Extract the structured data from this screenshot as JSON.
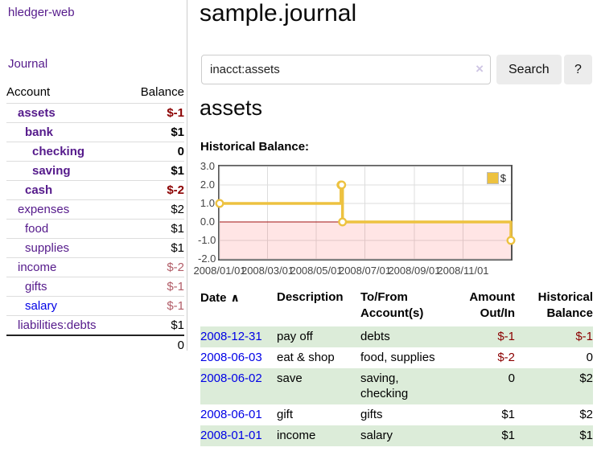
{
  "colors": {
    "link_visited_purple": "#551a8b",
    "link_new_blue": "#0000e6",
    "negative_red": "#8b0000",
    "negative_muted_rose": "#b25d68",
    "stripe_green": "#dcecd9",
    "button_gray": "#ececec",
    "divider_gray": "#cccccc"
  },
  "sidebar": {
    "brand": "hledger-web",
    "journal_link": "Journal",
    "table": {
      "account_header": "Account",
      "balance_header": "Balance",
      "rows": [
        {
          "name": "assets",
          "balance": "$-1",
          "level": 1,
          "in_acct": true,
          "balance_tone": "negative",
          "link_tone": "visited"
        },
        {
          "name": "bank",
          "balance": "$1",
          "level": 2,
          "in_acct": true,
          "balance_tone": "normal",
          "link_tone": "visited"
        },
        {
          "name": "checking",
          "balance": "0",
          "level": 3,
          "in_acct": true,
          "balance_tone": "normal",
          "link_tone": "visited"
        },
        {
          "name": "saving",
          "balance": "$1",
          "level": 3,
          "in_acct": true,
          "balance_tone": "normal",
          "link_tone": "visited"
        },
        {
          "name": "cash",
          "balance": "$-2",
          "level": 2,
          "in_acct": true,
          "balance_tone": "negative",
          "link_tone": "visited"
        },
        {
          "name": "expenses",
          "balance": "$2",
          "level": 1,
          "in_acct": false,
          "balance_tone": "normal",
          "link_tone": "visited"
        },
        {
          "name": "food",
          "balance": "$1",
          "level": 2,
          "in_acct": false,
          "balance_tone": "normal",
          "link_tone": "visited"
        },
        {
          "name": "supplies",
          "balance": "$1",
          "level": 2,
          "in_acct": false,
          "balance_tone": "normal",
          "link_tone": "visited"
        },
        {
          "name": "income",
          "balance": "$-2",
          "level": 1,
          "in_acct": false,
          "balance_tone": "negative-muted",
          "link_tone": "visited"
        },
        {
          "name": "gifts",
          "balance": "$-1",
          "level": 2,
          "in_acct": false,
          "balance_tone": "negative-muted",
          "link_tone": "visited"
        },
        {
          "name": "salary",
          "balance": "$-1",
          "level": 2,
          "in_acct": false,
          "balance_tone": "negative-muted",
          "link_tone": "new"
        },
        {
          "name": "liabilities:debts",
          "balance": "$1",
          "level": 1,
          "in_acct": false,
          "balance_tone": "normal",
          "link_tone": "visited"
        }
      ],
      "total": "0"
    }
  },
  "main": {
    "title": "sample.journal",
    "search": {
      "value": "inacct:assets",
      "clear_icon": "×",
      "search_button": "Search",
      "help_button": "?"
    },
    "account_heading": "assets",
    "section_label": "Historical Balance:"
  },
  "chart_data": {
    "type": "line",
    "step": true,
    "title": "Historical Balance:",
    "xlim": [
      "2008-01-01",
      "2008-12-31"
    ],
    "ylim": [
      -2,
      3
    ],
    "yticks": [
      {
        "v": 3,
        "label": "3.0"
      },
      {
        "v": 2,
        "label": "2.0"
      },
      {
        "v": 1,
        "label": "1.0"
      },
      {
        "v": 0,
        "label": "0.0"
      },
      {
        "v": -1,
        "label": "-1.0"
      },
      {
        "v": -2,
        "label": "-2.0"
      }
    ],
    "xticks": [
      {
        "t": "2008-01-01",
        "label": "2008/01/01"
      },
      {
        "t": "2008-03-01",
        "label": "2008/03/01"
      },
      {
        "t": "2008-05-01",
        "label": "2008/05/01"
      },
      {
        "t": "2008-07-01",
        "label": "2008/07/01"
      },
      {
        "t": "2008-09-01",
        "label": "2008/09/01"
      },
      {
        "t": "2008-11-01",
        "label": "2008/11/01"
      }
    ],
    "series": [
      {
        "name": "$",
        "color": "#edc240",
        "points": [
          [
            "2008-01-01",
            1
          ],
          [
            "2008-06-01",
            2
          ],
          [
            "2008-06-02",
            2
          ],
          [
            "2008-06-03",
            0
          ],
          [
            "2008-12-31",
            -1
          ]
        ]
      }
    ],
    "legend_position": "top-right",
    "grid": true,
    "grid_color": "#dddddd",
    "below_zero_fill": "rgba(255,0,0,0.10)",
    "zero_line_color": "#a01010",
    "border_color": "#545454"
  },
  "register": {
    "sort_icon": "∧",
    "headers": [
      {
        "label": "Date",
        "align": "left",
        "sortable": true
      },
      {
        "label": "Description",
        "align": "left"
      },
      {
        "label": "To/From\nAccount(s)",
        "align": "left"
      },
      {
        "label": "Amount\nOut/In",
        "align": "right"
      },
      {
        "label": "Historical\nBalance",
        "align": "right"
      }
    ],
    "rows": [
      {
        "date": "2008-12-31",
        "description": "pay off",
        "accounts": "debts",
        "amount": "$-1",
        "amount_negative": true,
        "balance": "$-1",
        "balance_negative": true
      },
      {
        "date": "2008-06-03",
        "description": "eat & shop",
        "accounts": "food, supplies",
        "amount": "$-2",
        "amount_negative": true,
        "balance": "0",
        "balance_negative": false
      },
      {
        "date": "2008-06-02",
        "description": "save",
        "accounts": "saving,\nchecking",
        "amount": "0",
        "amount_negative": false,
        "balance": "$2",
        "balance_negative": false
      },
      {
        "date": "2008-06-01",
        "description": "gift",
        "accounts": "gifts",
        "amount": "$1",
        "amount_negative": false,
        "balance": "$2",
        "balance_negative": false
      },
      {
        "date": "2008-01-01",
        "description": "income",
        "accounts": "salary",
        "amount": "$1",
        "amount_negative": false,
        "balance": "$1",
        "balance_negative": false
      }
    ]
  }
}
